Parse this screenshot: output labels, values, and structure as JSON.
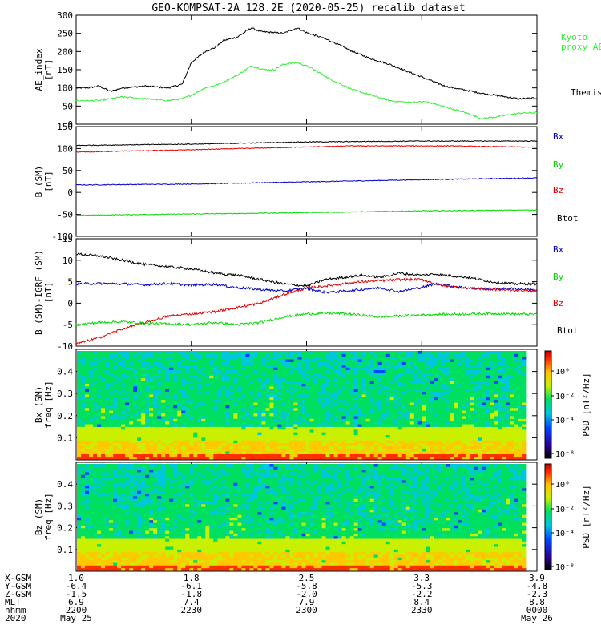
{
  "title": "GEO-KOMPSAT-2A 128.2E (2020-05-25) recalib dataset",
  "colors": {
    "black": "#000000",
    "red": "#e00000",
    "blue": "#0000c8",
    "green": "#00d800",
    "kyoto": "#33ee33"
  },
  "chart_data": [
    {
      "id": "ae",
      "type": "line",
      "ylabel": "AE_index",
      "yunit": "[nT]",
      "ylim": [
        0,
        300
      ],
      "yticks": [
        "0",
        "50",
        "100",
        "150",
        "200",
        "250",
        "300"
      ],
      "series": [
        {
          "name": "Themis AE",
          "color": "#000000",
          "points": [
            [
              0,
              100
            ],
            [
              0.05,
              100
            ],
            [
              0.1,
              105
            ],
            [
              0.15,
              90
            ],
            [
              0.2,
              100
            ],
            [
              0.3,
              105
            ],
            [
              0.4,
              100
            ],
            [
              0.46,
              110
            ],
            [
              0.5,
              170
            ],
            [
              0.56,
              200
            ],
            [
              0.6,
              210
            ],
            [
              0.64,
              230
            ],
            [
              0.7,
              240
            ],
            [
              0.76,
              265
            ],
            [
              0.8,
              255
            ],
            [
              0.86,
              252
            ],
            [
              0.9,
              250
            ],
            [
              0.96,
              265
            ],
            [
              1.0,
              252
            ],
            [
              1.06,
              240
            ],
            [
              1.12,
              225
            ],
            [
              1.2,
              200
            ],
            [
              1.28,
              180
            ],
            [
              1.36,
              165
            ],
            [
              1.44,
              145
            ],
            [
              1.52,
              125
            ],
            [
              1.6,
              105
            ],
            [
              1.68,
              95
            ],
            [
              1.76,
              85
            ],
            [
              1.84,
              78
            ],
            [
              1.92,
              70
            ],
            [
              2.0,
              72
            ]
          ]
        },
        {
          "name": "Kyoto proxy AE",
          "color": "#33ee33",
          "points": [
            [
              0,
              65
            ],
            [
              0.1,
              65
            ],
            [
              0.2,
              75
            ],
            [
              0.3,
              70
            ],
            [
              0.4,
              65
            ],
            [
              0.46,
              70
            ],
            [
              0.5,
              80
            ],
            [
              0.56,
              100
            ],
            [
              0.62,
              110
            ],
            [
              0.7,
              135
            ],
            [
              0.76,
              160
            ],
            [
              0.82,
              150
            ],
            [
              0.86,
              150
            ],
            [
              0.9,
              165
            ],
            [
              0.96,
              170
            ],
            [
              1.02,
              155
            ],
            [
              1.1,
              125
            ],
            [
              1.2,
              95
            ],
            [
              1.28,
              80
            ],
            [
              1.36,
              65
            ],
            [
              1.44,
              60
            ],
            [
              1.52,
              62
            ],
            [
              1.6,
              48
            ],
            [
              1.7,
              30
            ],
            [
              1.76,
              15
            ],
            [
              1.82,
              20
            ],
            [
              1.92,
              30
            ],
            [
              2.0,
              32
            ]
          ]
        }
      ],
      "legend": [
        {
          "text": "Kyoto",
          "color": "#33ee33"
        },
        {
          "text": "proxy AE",
          "color": "#33ee33"
        },
        {
          "text": "Themis AE",
          "color": "#000000"
        }
      ]
    },
    {
      "id": "bsm",
      "type": "line",
      "ylabel": "B (SM)",
      "yunit": "[nT]",
      "ylim": [
        -100,
        150
      ],
      "yticks": [
        "-100",
        "-50",
        "0",
        "50",
        "100",
        "150"
      ],
      "series": [
        {
          "name": "Bx",
          "color": "#0000c8",
          "points": [
            [
              0,
              17
            ],
            [
              0.5,
              19
            ],
            [
              1.0,
              24
            ],
            [
              1.5,
              29
            ],
            [
              2.0,
              33
            ]
          ]
        },
        {
          "name": "By",
          "color": "#00d800",
          "points": [
            [
              0,
              -52
            ],
            [
              0.5,
              -49
            ],
            [
              1.0,
              -46
            ],
            [
              1.5,
              -42
            ],
            [
              2.0,
              -40
            ]
          ]
        },
        {
          "name": "Bz",
          "color": "#e00000",
          "points": [
            [
              0,
              92
            ],
            [
              0.4,
              96
            ],
            [
              0.8,
              101
            ],
            [
              1.2,
              106
            ],
            [
              1.6,
              106
            ],
            [
              2.0,
              103
            ]
          ]
        },
        {
          "name": "Btot",
          "color": "#000000",
          "points": [
            [
              0,
              107
            ],
            [
              0.5,
              110
            ],
            [
              1.0,
              115
            ],
            [
              1.5,
              117
            ],
            [
              2.0,
              117
            ]
          ]
        }
      ],
      "legend": [
        {
          "text": "Bx",
          "color": "#0000c8"
        },
        {
          "text": "By",
          "color": "#00d800"
        },
        {
          "text": "Bz",
          "color": "#e00000"
        },
        {
          "text": "Btot",
          "color": "#000000"
        }
      ]
    },
    {
      "id": "bdiff",
      "type": "line",
      "ylabel": "B (SM)-IGRF (SM)",
      "yunit": "[nT]",
      "ylim": [
        -10,
        15
      ],
      "yticks": [
        "-10",
        "-5",
        "0",
        "5",
        "10",
        "15"
      ],
      "series": [
        {
          "name": "Btot",
          "color": "#000000",
          "points": [
            [
              0,
              11.5
            ],
            [
              0.1,
              11
            ],
            [
              0.2,
              10
            ],
            [
              0.3,
              9
            ],
            [
              0.4,
              8.5
            ],
            [
              0.5,
              8
            ],
            [
              0.6,
              7
            ],
            [
              0.7,
              6.5
            ],
            [
              0.8,
              5.5
            ],
            [
              0.9,
              4.5
            ],
            [
              1.0,
              4
            ],
            [
              1.08,
              5.5
            ],
            [
              1.16,
              6
            ],
            [
              1.24,
              6.5
            ],
            [
              1.32,
              6
            ],
            [
              1.4,
              7
            ],
            [
              1.5,
              6.5
            ],
            [
              1.56,
              6.8
            ],
            [
              1.6,
              6.5
            ],
            [
              1.7,
              6
            ],
            [
              1.8,
              5
            ],
            [
              1.9,
              4.5
            ],
            [
              2.0,
              4.5
            ]
          ]
        },
        {
          "name": "Bx",
          "color": "#0000c8",
          "points": [
            [
              0,
              4.5
            ],
            [
              0.1,
              4.6
            ],
            [
              0.2,
              4.5
            ],
            [
              0.3,
              4.3
            ],
            [
              0.4,
              4.6
            ],
            [
              0.5,
              4.2
            ],
            [
              0.6,
              4.4
            ],
            [
              0.7,
              3.6
            ],
            [
              0.8,
              3.2
            ],
            [
              0.9,
              2.8
            ],
            [
              1.0,
              3.5
            ],
            [
              1.08,
              2.5
            ],
            [
              1.16,
              2.8
            ],
            [
              1.24,
              3.2
            ],
            [
              1.32,
              3.6
            ],
            [
              1.4,
              2.7
            ],
            [
              1.5,
              3.7
            ],
            [
              1.56,
              4.5
            ],
            [
              1.6,
              4.2
            ],
            [
              1.7,
              3.5
            ],
            [
              1.8,
              3.3
            ],
            [
              1.9,
              3.4
            ],
            [
              2.0,
              3.0
            ]
          ]
        },
        {
          "name": "Bz",
          "color": "#e00000",
          "points": [
            [
              0,
              -9.5
            ],
            [
              0.1,
              -8
            ],
            [
              0.2,
              -6
            ],
            [
              0.3,
              -4.5
            ],
            [
              0.4,
              -3
            ],
            [
              0.5,
              -2.5
            ],
            [
              0.6,
              -2
            ],
            [
              0.7,
              -1
            ],
            [
              0.8,
              0
            ],
            [
              0.9,
              2
            ],
            [
              1.0,
              3.5
            ],
            [
              1.08,
              4
            ],
            [
              1.16,
              4.5
            ],
            [
              1.24,
              5
            ],
            [
              1.32,
              5.2
            ],
            [
              1.4,
              5.5
            ],
            [
              1.5,
              5.5
            ],
            [
              1.56,
              4.5
            ],
            [
              1.6,
              4.0
            ],
            [
              1.7,
              3.5
            ],
            [
              1.8,
              3.2
            ],
            [
              1.9,
              3.0
            ],
            [
              2.0,
              2.8
            ]
          ]
        },
        {
          "name": "By",
          "color": "#00d800",
          "points": [
            [
              0,
              -5
            ],
            [
              0.1,
              -4.5
            ],
            [
              0.2,
              -4.3
            ],
            [
              0.3,
              -4.7
            ],
            [
              0.4,
              -4.8
            ],
            [
              0.5,
              -5
            ],
            [
              0.6,
              -4.5
            ],
            [
              0.7,
              -5
            ],
            [
              0.8,
              -4.5
            ],
            [
              0.9,
              -3.2
            ],
            [
              1.0,
              -2.5
            ],
            [
              1.08,
              -2.3
            ],
            [
              1.16,
              -2.4
            ],
            [
              1.24,
              -2.8
            ],
            [
              1.32,
              -3.2
            ],
            [
              1.4,
              -3.0
            ],
            [
              1.5,
              -2.7
            ],
            [
              1.6,
              -2.6
            ],
            [
              1.7,
              -2.5
            ],
            [
              1.8,
              -2.4
            ],
            [
              1.9,
              -2.5
            ],
            [
              2.0,
              -2.6
            ]
          ]
        }
      ],
      "legend": [
        {
          "text": "Bx",
          "color": "#0000c8"
        },
        {
          "text": "By",
          "color": "#00d800"
        },
        {
          "text": "Bz",
          "color": "#e00000"
        },
        {
          "text": "Btot",
          "color": "#000000"
        }
      ]
    },
    {
      "id": "spec_bx",
      "type": "heatmap",
      "ylabel": "Bx (SM)",
      "yunit": "freq [Hz]",
      "ylim": [
        0,
        0.5
      ],
      "yticks": [
        "0.1",
        "0.2",
        "0.3",
        "0.4"
      ],
      "colorbar_label": "PSD [nT²/Hz]",
      "colorbar_ticks": [
        "10⁰",
        "10⁻²",
        "10⁻⁴",
        "10⁻⁸"
      ],
      "z_range_log10": [
        -9,
        1
      ]
    },
    {
      "id": "spec_bz",
      "type": "heatmap",
      "ylabel": "Bz (SM)",
      "yunit": "freq [Hz]",
      "ylim": [
        0,
        0.5
      ],
      "yticks": [
        "0.1",
        "0.2",
        "0.3",
        "0.4"
      ],
      "colorbar_label": "PSD [nT²/Hz]",
      "colorbar_ticks": [
        "10⁰",
        "10⁻²",
        "10⁻⁴",
        "10⁻⁸"
      ],
      "z_range_log10": [
        -9,
        1
      ]
    }
  ],
  "x_axis": {
    "range_hours": [
      0,
      2
    ],
    "tick_hours": [
      0,
      0.5,
      1.0,
      1.5,
      2.0
    ],
    "row_labels": [
      "X-GSM",
      "Y-GSM",
      "Z-GSM",
      "MLT",
      "hhmm",
      "2020"
    ],
    "columns": [
      [
        "1.0",
        "-6.4",
        "-1.5",
        "6.9",
        "2200",
        "May 25"
      ],
      [
        "1.8",
        "-6.1",
        "-1.8",
        "7.4",
        "2230",
        ""
      ],
      [
        "2.5",
        "-5.8",
        "-2.0",
        "7.9",
        "2300",
        ""
      ],
      [
        "3.3",
        "-5.3",
        "-2.2",
        "8.4",
        "2330",
        ""
      ],
      [
        "3.9",
        "-4.8",
        "-2.3",
        "8.8",
        "0000",
        "May 26"
      ]
    ]
  }
}
